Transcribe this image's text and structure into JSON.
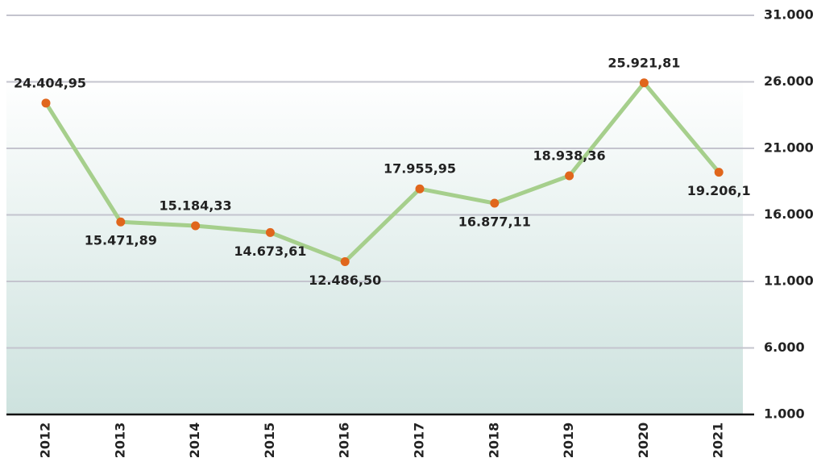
{
  "chart_data": {
    "type": "line",
    "categories": [
      "2012",
      "2013",
      "2014",
      "2015",
      "2016",
      "2017",
      "2018",
      "2019",
      "2020",
      "2021"
    ],
    "values": [
      24404.95,
      15471.89,
      15184.33,
      14673.61,
      12486.5,
      17955.95,
      16877.11,
      18938.36,
      25921.81,
      19206.1
    ],
    "value_labels": [
      "24.404,95",
      "15.471,89",
      "15.184,33",
      "14.673,61",
      "12.486,50",
      "17.955,95",
      "16.877,11",
      "18.938,36",
      "25.921,81",
      "19.206,1"
    ],
    "color": "#a6cf8c",
    "marker_color": "#e0661c",
    "ylim": [
      1000,
      31000
    ],
    "yticks": [
      {
        "value": 1000,
        "label": "1.000"
      },
      {
        "value": 6000,
        "label": "6.000"
      },
      {
        "value": 11000,
        "label": "11.000"
      },
      {
        "value": 16000,
        "label": "16.000"
      },
      {
        "value": 21000,
        "label": "21.000"
      },
      {
        "value": 26000,
        "label": "26.000"
      },
      {
        "value": 31000,
        "label": "31.000"
      }
    ],
    "grid": true
  }
}
